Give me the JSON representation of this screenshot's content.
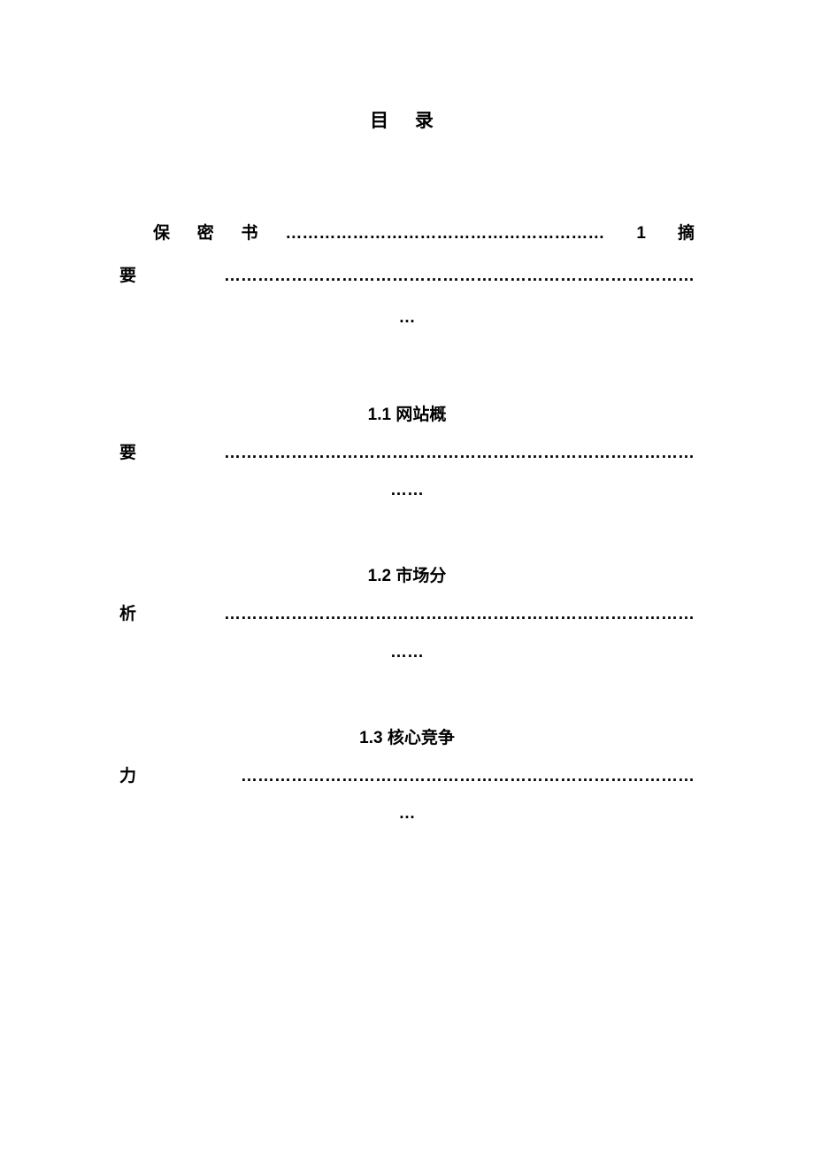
{
  "page_title": "目  录",
  "entry1": {
    "line1": "保密书………………………………………………… 1  摘",
    "line2": "要…………………………………………………………………………",
    "line3": "…"
  },
  "section_1_1": {
    "heading": "1.1 网站概",
    "continuation": "要…………………………………………………………………………",
    "trailing": "……"
  },
  "section_1_2": {
    "heading": "1.2 市场分",
    "continuation": "析…………………………………………………………………………",
    "trailing": "……"
  },
  "section_1_3": {
    "heading": "1.3 核心竞争",
    "continuation": "力 ………………………………………………………………………",
    "trailing": "…"
  },
  "colors": {
    "background": "#ffffff",
    "text": "#000000"
  },
  "typography": {
    "title_fontsize": 21,
    "body_fontsize": 19,
    "font_weight": "bold",
    "font_family": "SimSun"
  }
}
